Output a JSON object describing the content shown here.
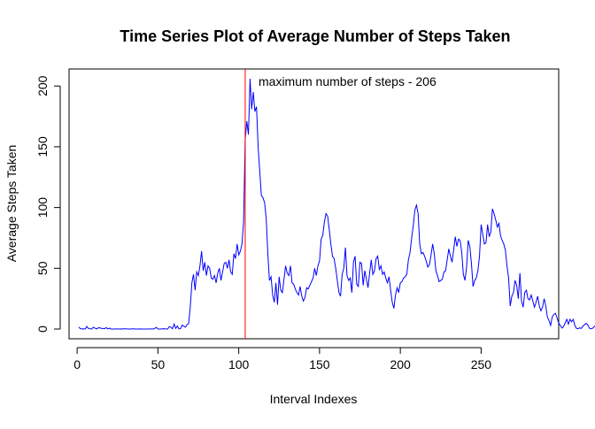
{
  "chart_data": {
    "type": "line",
    "title": "Time Series Plot of Average Number of Steps Taken",
    "xlabel": "Interval Indexes",
    "ylabel": "Average Steps Taken",
    "xlim": [
      -5,
      298
    ],
    "ylim": [
      -8,
      214
    ],
    "x_ticks": [
      0,
      50,
      100,
      150,
      200,
      250
    ],
    "y_ticks": [
      0,
      50,
      100,
      150,
      200
    ],
    "grid": false,
    "legend": "none",
    "colors": {
      "series": "#0000ff",
      "vline": "#ff0000"
    },
    "annotation": {
      "text": "maximum number of steps -  206",
      "x": 104
    },
    "series": [
      {
        "x_start": 1,
        "x_step": 1,
        "values": [
          1.7,
          0.3,
          0.1,
          0.2,
          0.1,
          2.1,
          0.5,
          0.2,
          0.0,
          1.5,
          0.8,
          0.1,
          0.9,
          1.1,
          0.5,
          0.5,
          0.3,
          1.2,
          0.1,
          0.8,
          0.0,
          0.0,
          0.0,
          0.1,
          0.1,
          0.0,
          0.1,
          0.0,
          0.3,
          0.2,
          0.1,
          0.0,
          0.0,
          0.2,
          0.2,
          0.0,
          0.0,
          0.0,
          0.1,
          0.0,
          0.0,
          0.0,
          0.0,
          0.0,
          0.1,
          0.1,
          0.0,
          0.5,
          1.4,
          0.0,
          0.0,
          0.1,
          0.2,
          0.3,
          0.0,
          0.0,
          2.0,
          1.5,
          0.2,
          4.1,
          0.5,
          2.5,
          0.1,
          0.3,
          3.3,
          2.2,
          1.6,
          3.6,
          4.5,
          18.0,
          38.0,
          45.0,
          32.0,
          47.0,
          44.0,
          52.0,
          64.0,
          48.0,
          55.0,
          44.0,
          52.0,
          50.0,
          42.0,
          41.0,
          44.0,
          38.0,
          46.0,
          50.0,
          40.0,
          47.0,
          54.0,
          55.0,
          50.0,
          57.0,
          47.0,
          45.0,
          62.0,
          58.0,
          70.0,
          61.0,
          64.0,
          70.0,
          88.0,
          156.0,
          171.0,
          160.0,
          206.0,
          181.0,
          195.0,
          179.0,
          183.0,
          150.0,
          130.0,
          110.0,
          108.0,
          104.0,
          91.0,
          62.0,
          40.0,
          43.0,
          28.0,
          22.0,
          38.0,
          20.0,
          43.0,
          32.0,
          30.0,
          41.0,
          52.0,
          46.0,
          44.0,
          52.0,
          38.0,
          37.0,
          33.0,
          30.0,
          28.0,
          35.0,
          27.0,
          23.0,
          26.0,
          34.0,
          33.0,
          36.0,
          39.0,
          42.0,
          50.0,
          44.0,
          52.0,
          56.0,
          74.0,
          77.0,
          88.0,
          95.0,
          93.0,
          82.0,
          70.0,
          60.0,
          58.0,
          50.0,
          40.0,
          30.0,
          27.0,
          45.0,
          50.0,
          67.0,
          44.0,
          40.0,
          42.0,
          30.0,
          55.0,
          60.0,
          37.0,
          35.0,
          55.0,
          54.0,
          36.0,
          48.0,
          41.0,
          34.0,
          46.0,
          57.0,
          45.0,
          48.0,
          58.0,
          60.0,
          49.0,
          52.0,
          45.0,
          47.0,
          42.0,
          38.0,
          43.0,
          32.0,
          22.0,
          17.0,
          28.0,
          34.0,
          30.0,
          38.0,
          39.0,
          42.0,
          43.0,
          45.0,
          57.0,
          63.0,
          75.0,
          85.0,
          98.0,
          102.0,
          95.0,
          70.0,
          62.0,
          63.0,
          60.0,
          56.0,
          51.0,
          53.0,
          61.0,
          70.0,
          62.0,
          48.0,
          44.0,
          39.0,
          40.0,
          41.0,
          47.0,
          48.0,
          57.0,
          66.0,
          60.0,
          55.0,
          65.0,
          76.0,
          68.0,
          74.0,
          73.0,
          63.0,
          45.0,
          40.0,
          51.0,
          73.0,
          68.0,
          54.0,
          35.0,
          40.0,
          42.0,
          48.0,
          60.0,
          86.0,
          78.0,
          70.0,
          71.0,
          86.0,
          76.0,
          80.0,
          99.0,
          95.0,
          90.0,
          84.0,
          87.0,
          77.0,
          73.0,
          70.0,
          65.0,
          52.0,
          42.0,
          19.0,
          27.0,
          30.0,
          40.0,
          36.0,
          25.0,
          46.0,
          23.0,
          18.0,
          30.0,
          32.0,
          25.0,
          24.0,
          28.0,
          23.0,
          18.0,
          22.0,
          27.0,
          19.0,
          15.0,
          18.0,
          25.0,
          19.0,
          10.0,
          7.0,
          3.0,
          10.0,
          12.0,
          13.0,
          9.0,
          5.0,
          3.0,
          0.8,
          2.0,
          5.0,
          8.0,
          4.0,
          8.0,
          6.0,
          8.0,
          3.0,
          0.5,
          0.3,
          1.0,
          0.5,
          2.5,
          3.6,
          4.6,
          3.5,
          0.7,
          0.2,
          0.7,
          2.0,
          3.0,
          3.5,
          0.3,
          1.6,
          4.5,
          4.0,
          3.0,
          2.0,
          0.5,
          0.1,
          0.5,
          0.2,
          3.0,
          2.0,
          2.0,
          3.0,
          0.6,
          0.3,
          0.5,
          1.0,
          0.5,
          2.5,
          3.0,
          2.0,
          1.1,
          0.5,
          3.4,
          4.7,
          2.6,
          0.6,
          1.6,
          3.0,
          1.0,
          2.6,
          3.0,
          1.5,
          0.3,
          1.4,
          1.1,
          0.3,
          2.0,
          1.0,
          0.3,
          4.5,
          0.7,
          0.8,
          1.1,
          0.7,
          0.6,
          0.7,
          0.6,
          0.6,
          1.0,
          0.6,
          0.5,
          0.6,
          0.6,
          0.7,
          0.5,
          1.1
        ]
      }
    ]
  }
}
